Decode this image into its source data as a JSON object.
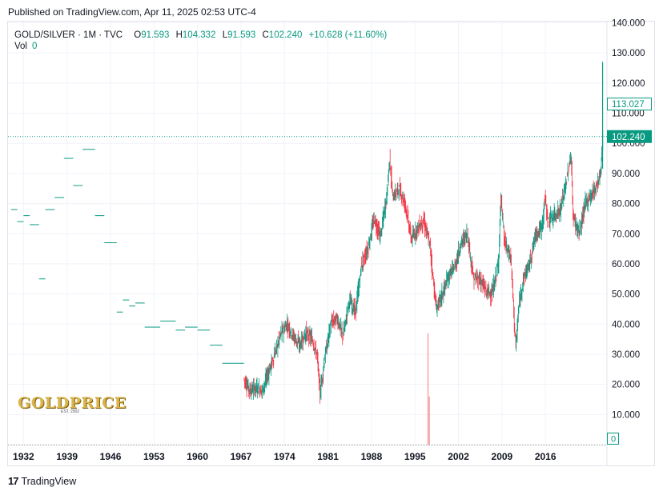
{
  "header": {
    "published": "Published on TradingView.com, Apr 11, 2025 02:53 UTC-4"
  },
  "legend": {
    "symbol": "GOLD/SILVER · 1M · TVC",
    "o_label": "O",
    "o_value": "91.593",
    "h_label": "H",
    "h_value": "104.332",
    "l_label": "L",
    "l_value": "91.593",
    "c_label": "C",
    "c_value": "102.240",
    "change": "+10.628 (+11.60%)",
    "vol_label": "Vol",
    "vol_value": "0"
  },
  "footer": {
    "brand": "TradingView",
    "logo_glyph": "17"
  },
  "watermark": {
    "text": "GOLDPRICE",
    "subtext": "EST. 2002"
  },
  "colors": {
    "up": "#089981",
    "down": "#f23645",
    "grid": "#f0f3fa",
    "axis_text": "#131722"
  },
  "chart_data": {
    "type": "candlestick",
    "title": "GOLD/SILVER · 1M · TVC",
    "x_axis_labels": [
      "1932",
      "1939",
      "1946",
      "1953",
      "1960",
      "1967",
      "1974",
      "1981",
      "1988",
      "1995",
      "2002",
      "2009",
      "2016"
    ],
    "x_range": [
      1929.5,
      2025.9
    ],
    "y_ticks": [
      "10.000",
      "20.000",
      "30.000",
      "40.000",
      "50.000",
      "60.000",
      "70.000",
      "80.000",
      "90.000",
      "100.000",
      "110.000",
      "120.000",
      "130.000",
      "140.000"
    ],
    "ylim": [
      0,
      140
    ],
    "last_price": 102.24,
    "last_price_label": "102.240",
    "countdown_marker": 113.027,
    "countdown_label": "113.027",
    "volume_label": "0",
    "grid": true,
    "series": [
      {
        "kind": "ratio",
        "x": [
          1930.0,
          1931.0,
          1932.0,
          1933.0,
          1934.5,
          1935.5,
          1937.0,
          1938.5,
          1940.0,
          1941.5,
          1943.5,
          1945.0,
          1947.0,
          1948.0,
          1949.0,
          1950.0,
          1951.5,
          1954.0,
          1956.5,
          1958.0,
          1960.0,
          1962.0,
          1964.0,
          1966.0,
          1967.5,
          1968.5,
          1969.5,
          1970.5,
          1971.5,
          1972.5,
          1973.5,
          1974.5,
          1975.5,
          1976.5,
          1977.5,
          1978.5,
          1979.3,
          1979.8,
          1980.5,
          1981.5,
          1982.5,
          1983.5,
          1984.5,
          1985.5,
          1986.5,
          1987.5,
          1988.5,
          1989.5,
          1990.5,
          1991.0,
          1991.5,
          1992.5,
          1993.5,
          1994.5,
          1995.5,
          1996.5,
          1997.5,
          1998.0,
          1998.5,
          1999.5,
          2000.5,
          2001.5,
          2002.5,
          2003.5,
          2004.5,
          2005.5,
          2006.5,
          2007.5,
          2008.5,
          2008.9,
          2009.5,
          2010.5,
          2011.3,
          2011.8,
          2012.5,
          2013.5,
          2014.5,
          2015.5,
          2016.0,
          2016.5,
          2017.5,
          2018.5,
          2019.5,
          2020.2,
          2020.5,
          2021.5,
          2022.5,
          2023.5,
          2024.5,
          2025.0,
          2025.3
        ],
        "values": [
          78,
          74,
          76,
          73,
          55,
          78,
          82,
          95,
          86,
          98,
          76,
          67,
          44,
          48,
          46,
          47,
          39,
          41,
          38,
          39,
          38,
          33,
          27,
          27,
          22,
          18,
          19,
          18,
          24,
          30,
          37,
          40,
          36,
          33,
          37,
          35,
          30,
          17,
          28,
          40,
          42,
          36,
          48,
          44,
          60,
          65,
          75,
          69,
          82,
          95,
          82,
          85,
          80,
          68,
          72,
          74,
          66,
          55,
          45,
          50,
          56,
          59,
          67,
          70,
          55,
          55,
          51,
          50,
          60,
          82,
          67,
          62,
          32,
          46,
          55,
          60,
          70,
          72,
          82,
          74,
          76,
          78,
          88,
          96,
          76,
          70,
          80,
          83,
          87,
          91,
          102.24
        ]
      },
      {
        "kind": "volume",
        "x": [
          1997.0,
          1997.2
        ],
        "values": [
          37,
          16
        ]
      }
    ]
  }
}
